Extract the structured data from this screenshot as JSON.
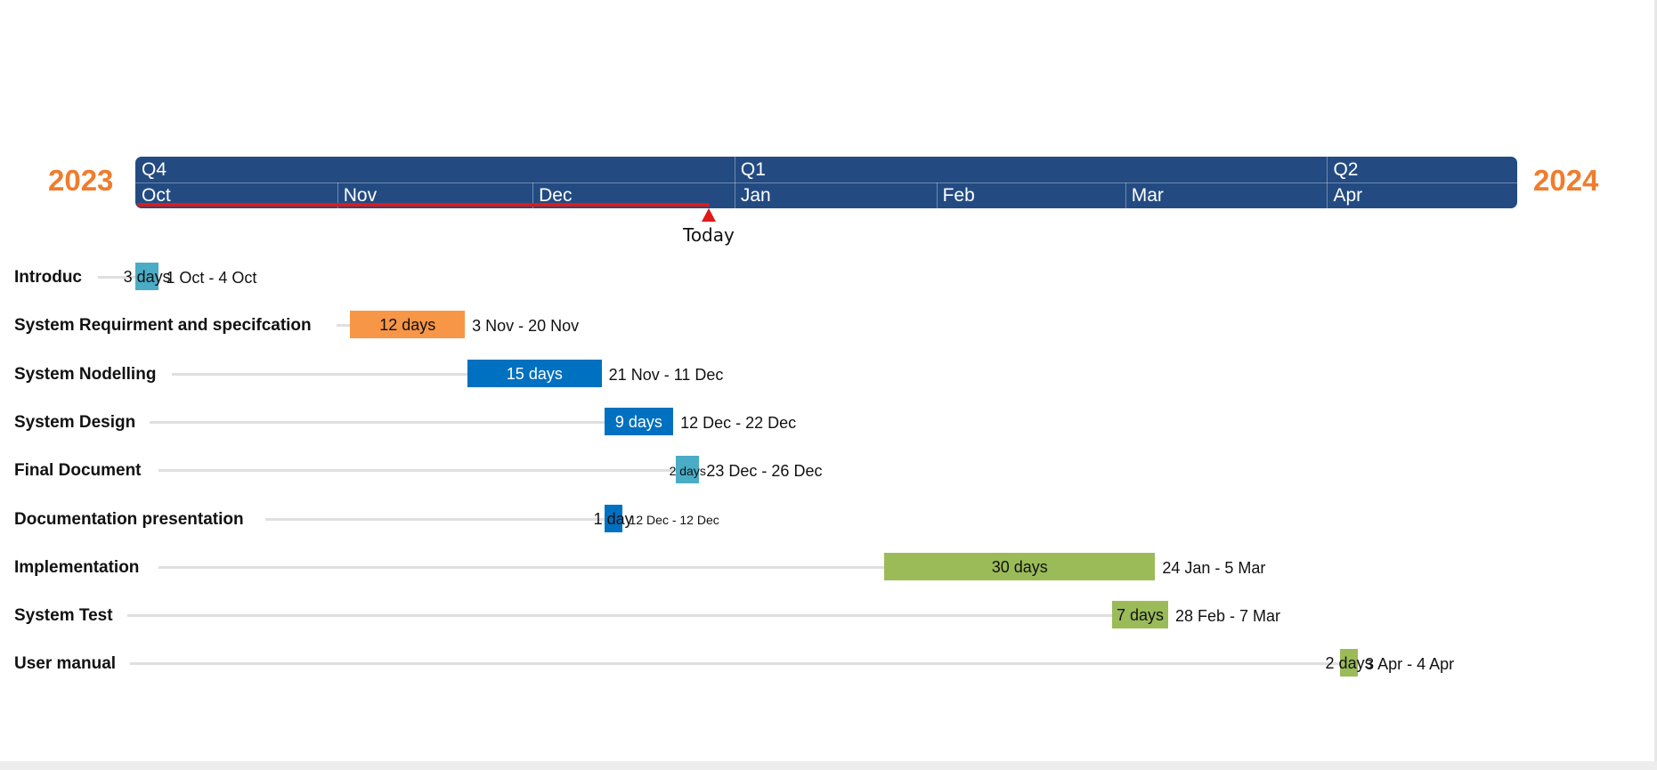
{
  "years": {
    "left": "2023",
    "right": "2024"
  },
  "timeline": {
    "quarters": [
      "Q4",
      "Q1",
      "Q2"
    ],
    "months": [
      "Oct",
      "Nov",
      "Dec",
      "Jan",
      "Feb",
      "Mar",
      "Apr"
    ],
    "today_label": "Today",
    "today_date": "2023-12-29"
  },
  "colors": {
    "band": "#234b82",
    "today": "#e01919",
    "year": "#ef7d2d",
    "teal": "#4bacc6",
    "orange": "#f79646",
    "blue": "#0070c0",
    "green": "#9bbb59"
  },
  "chart_data": {
    "type": "gantt",
    "x_range": [
      "2023-10-01",
      "2024-04-30"
    ],
    "tasks": [
      {
        "name": "Introduc",
        "start": "2023-10-01",
        "end": "2023-10-04",
        "duration": "3 days",
        "range": "1 Oct - 4 Oct",
        "color": "#4bacc6"
      },
      {
        "name": "System Requirment and specifcation",
        "start": "2023-11-03",
        "end": "2023-11-20",
        "duration": "12 days",
        "range": "3 Nov - 20 Nov",
        "color": "#f79646"
      },
      {
        "name": "System Nodelling",
        "start": "2023-11-21",
        "end": "2023-12-11",
        "duration": "15 days",
        "range": "21 Nov - 11 Dec",
        "color": "#0070c0"
      },
      {
        "name": "System Design",
        "start": "2023-12-12",
        "end": "2023-12-22",
        "duration": "9 days",
        "range": "12 Dec - 22 Dec",
        "color": "#0070c0"
      },
      {
        "name": "Final Document",
        "start": "2023-12-23",
        "end": "2023-12-26",
        "duration": "2 days",
        "range": "23 Dec - 26 Dec",
        "color": "#4bacc6"
      },
      {
        "name": "Documentation presentation",
        "start": "2023-12-12",
        "end": "2023-12-12",
        "duration": "1 day",
        "range": "12 Dec - 12 Dec",
        "color": "#0070c0"
      },
      {
        "name": "Implementation",
        "start": "2024-01-24",
        "end": "2024-03-05",
        "duration": "30 days",
        "range": "24 Jan - 5 Mar",
        "color": "#9bbb59"
      },
      {
        "name": "System Test",
        "start": "2024-02-28",
        "end": "2024-03-07",
        "duration": "7 days",
        "range": "28 Feb - 7 Mar",
        "color": "#9bbb59"
      },
      {
        "name": "User manual",
        "start": "2024-04-03",
        "end": "2024-04-04",
        "duration": "2 days",
        "range": "3 Apr - 4 Apr",
        "color": "#9bbb59"
      }
    ]
  }
}
